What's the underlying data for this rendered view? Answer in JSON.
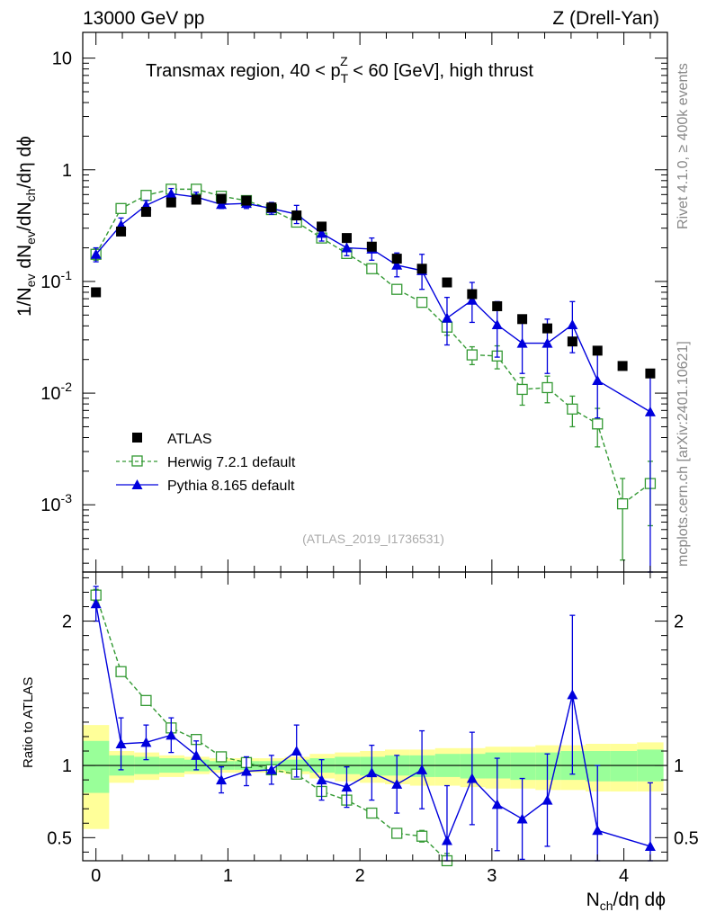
{
  "header": {
    "left": "13000 GeV pp",
    "right": "Z (Drell-Yan)"
  },
  "side_labels": {
    "rivet": "Rivet 4.1.0, ≥ 400k events",
    "mcplots": "mcplots.cern.ch [arXiv:2401.10621]"
  },
  "chart_data": [
    {
      "type": "scatter",
      "panel": "main",
      "title": "Transmax region, 40 < p_T^Z < 60 [GeV], high thrust",
      "title_parts": {
        "pre": "Transmax region, 40 < p",
        "sub": "T",
        "sup": "Z",
        "post": " < 60 [GeV], high thrust"
      },
      "ylabel": "1/N_ev dN_ev/dN_ch/dη dϕ",
      "ylabel_parts": {
        "a": "1/N",
        "s1": "ev",
        "b": " dN",
        "s2": "ev",
        "c": "/dN",
        "s3": "ch",
        "d": "/dη dϕ"
      },
      "yscale": "log",
      "ylim": [
        0.00025,
        17
      ],
      "xlim": [
        -0.1,
        4.33
      ],
      "ytick_labels": [
        {
          "base": "10",
          "exp": "-3",
          "value": 0.001
        },
        {
          "base": "10",
          "exp": "-2",
          "value": 0.01
        },
        {
          "base": "10",
          "exp": "-1",
          "value": 0.1
        },
        {
          "base": "1",
          "exp": "",
          "value": 1
        },
        {
          "base": "10",
          "exp": "",
          "value": 10
        }
      ],
      "watermark": "(ATLAS_2019_I1736531)",
      "legend": [
        "ATLAS",
        "Herwig 7.2.1 default",
        "Pythia 8.165 default"
      ],
      "legend_position": "bottom-left",
      "x": [
        0.0,
        0.19,
        0.38,
        0.57,
        0.76,
        0.95,
        1.14,
        1.33,
        1.52,
        1.71,
        1.9,
        2.09,
        2.28,
        2.47,
        2.66,
        2.85,
        3.04,
        3.23,
        3.42,
        3.61,
        3.8,
        3.99,
        4.2
      ],
      "series": [
        {
          "name": "ATLAS",
          "color": "#000000",
          "values": [
            0.08,
            0.28,
            0.42,
            0.51,
            0.54,
            0.55,
            0.53,
            0.46,
            0.39,
            0.31,
            0.245,
            0.205,
            0.16,
            0.13,
            0.098,
            0.077,
            0.06,
            0.046,
            0.038,
            0.029,
            0.024,
            0.0175,
            0.015
          ]
        },
        {
          "name": "Herwig 7.2.1 default",
          "color": "#339933",
          "values": [
            0.175,
            0.45,
            0.59,
            0.67,
            0.67,
            0.58,
            0.53,
            0.44,
            0.34,
            0.245,
            0.178,
            0.13,
            0.085,
            0.065,
            0.039,
            0.022,
            0.0215,
            0.0108,
            0.0112,
            0.0072,
            0.0053,
            0.00102,
            0.00155
          ],
          "err_low": [
            0.02,
            0.02,
            0.02,
            0.02,
            0.02,
            0.02,
            0.02,
            0.02,
            0.015,
            0.012,
            0.01,
            0.008,
            0.006,
            0.005,
            0.006,
            0.004,
            0.005,
            0.003,
            0.003,
            0.0022,
            0.002,
            0.0007,
            0.0009
          ],
          "err_high": [
            0.02,
            0.02,
            0.02,
            0.02,
            0.02,
            0.02,
            0.02,
            0.02,
            0.015,
            0.012,
            0.01,
            0.008,
            0.006,
            0.005,
            0.006,
            0.004,
            0.005,
            0.003,
            0.003,
            0.0022,
            0.002,
            0.0007,
            0.0009
          ]
        },
        {
          "name": "Pythia 8.165 default",
          "color": "#0000dd",
          "values": [
            0.175,
            0.32,
            0.48,
            0.61,
            0.57,
            0.49,
            0.5,
            0.45,
            0.4,
            0.27,
            0.2,
            0.195,
            0.14,
            0.125,
            0.047,
            0.068,
            0.041,
            0.028,
            0.028,
            0.041,
            0.013,
            null,
            0.0068
          ],
          "err_low": [
            0.025,
            0.04,
            0.04,
            0.05,
            0.05,
            0.04,
            0.05,
            0.05,
            0.07,
            0.04,
            0.03,
            0.04,
            0.03,
            0.04,
            0.02,
            0.025,
            0.02,
            0.013,
            0.013,
            0.018,
            0.007,
            null,
            0.0066
          ],
          "err_high": [
            0.025,
            0.05,
            0.05,
            0.07,
            0.06,
            0.05,
            0.06,
            0.06,
            0.08,
            0.05,
            0.04,
            0.05,
            0.04,
            0.05,
            0.025,
            0.03,
            0.025,
            0.018,
            0.018,
            0.025,
            0.01,
            null,
            0.007
          ]
        }
      ]
    },
    {
      "type": "line",
      "panel": "ratio",
      "xlabel": "N_ch/dη dϕ",
      "xlabel_parts": {
        "a": "N",
        "sub": "ch",
        "b": "/dη dϕ"
      },
      "ylabel": "Ratio to ATLAS",
      "ylim": [
        0.34,
        2.34
      ],
      "xlim": [
        -0.1,
        4.33
      ],
      "xticks": [
        0,
        1,
        2,
        3,
        4
      ],
      "xtick_labels": [
        "0",
        "1",
        "2",
        "3",
        "4"
      ],
      "yticks": [
        0.5,
        1,
        2
      ],
      "ytick_labels": [
        "0.5",
        "1",
        "2"
      ],
      "bands": {
        "edges": [
          -0.1,
          0.1,
          0.29,
          0.48,
          0.67,
          0.86,
          1.05,
          1.24,
          1.43,
          1.62,
          1.81,
          2.0,
          2.19,
          2.38,
          2.57,
          2.76,
          2.95,
          3.14,
          3.33,
          3.52,
          3.71,
          3.9,
          4.1,
          4.3
        ],
        "yellow_lo": [
          0.56,
          0.88,
          0.9,
          0.92,
          0.94,
          0.95,
          0.95,
          0.95,
          0.94,
          0.91,
          0.89,
          0.88,
          0.87,
          0.86,
          0.86,
          0.85,
          0.84,
          0.84,
          0.83,
          0.83,
          0.82,
          0.82,
          0.82
        ],
        "yellow_hi": [
          1.28,
          1.1,
          1.09,
          1.07,
          1.06,
          1.05,
          1.05,
          1.05,
          1.06,
          1.08,
          1.09,
          1.1,
          1.11,
          1.11,
          1.12,
          1.12,
          1.13,
          1.13,
          1.14,
          1.14,
          1.15,
          1.15,
          1.16
        ],
        "green_lo": [
          0.81,
          0.93,
          0.94,
          0.95,
          0.96,
          0.97,
          0.97,
          0.97,
          0.96,
          0.95,
          0.94,
          0.93,
          0.93,
          0.92,
          0.92,
          0.91,
          0.91,
          0.9,
          0.9,
          0.9,
          0.89,
          0.89,
          0.89
        ],
        "green_hi": [
          1.17,
          1.07,
          1.06,
          1.05,
          1.04,
          1.03,
          1.03,
          1.03,
          1.04,
          1.05,
          1.06,
          1.06,
          1.07,
          1.07,
          1.08,
          1.08,
          1.09,
          1.09,
          1.09,
          1.1,
          1.1,
          1.1,
          1.11
        ]
      },
      "series": [
        {
          "name": "Herwig 7.2.1 default",
          "color": "#339933",
          "values": [
            2.18,
            1.65,
            1.45,
            1.26,
            1.18,
            1.06,
            1.02,
            0.97,
            0.94,
            0.82,
            0.76,
            0.67,
            0.53,
            0.51,
            0.34,
            null,
            null,
            null,
            null,
            null,
            null,
            null,
            null
          ],
          "err_low": [
            0.04,
            0.03,
            0.03,
            0.02,
            0.02,
            0.02,
            0.02,
            0.02,
            0.02,
            0.02,
            0.03,
            0.03,
            0.03,
            0.04,
            0.05,
            null,
            null,
            null,
            null,
            null,
            null,
            null,
            null
          ],
          "err_high": [
            0.04,
            0.03,
            0.03,
            0.02,
            0.02,
            0.02,
            0.02,
            0.02,
            0.02,
            0.02,
            0.03,
            0.03,
            0.03,
            0.04,
            0.05,
            null,
            null,
            null,
            null,
            null,
            null,
            null,
            null
          ]
        },
        {
          "name": "Pythia 8.165 default",
          "color": "#0000dd",
          "values": [
            2.12,
            1.15,
            1.16,
            1.21,
            1.07,
            0.9,
            0.96,
            0.97,
            1.1,
            0.9,
            0.85,
            0.95,
            0.87,
            0.97,
            0.48,
            0.91,
            0.73,
            0.63,
            0.76,
            1.49,
            0.55,
            null,
            0.44
          ],
          "err_low": [
            0.12,
            0.18,
            0.12,
            0.12,
            0.1,
            0.09,
            0.1,
            0.1,
            0.18,
            0.14,
            0.14,
            0.19,
            0.2,
            0.27,
            0.38,
            0.32,
            0.32,
            0.28,
            0.32,
            0.55,
            0.45,
            null,
            0.44
          ],
          "err_high": [
            0.12,
            0.18,
            0.12,
            0.12,
            0.1,
            0.09,
            0.1,
            0.1,
            0.18,
            0.14,
            0.14,
            0.19,
            0.2,
            0.27,
            0.38,
            0.32,
            0.32,
            0.28,
            0.32,
            0.55,
            0.45,
            null,
            0.44
          ]
        }
      ]
    }
  ]
}
